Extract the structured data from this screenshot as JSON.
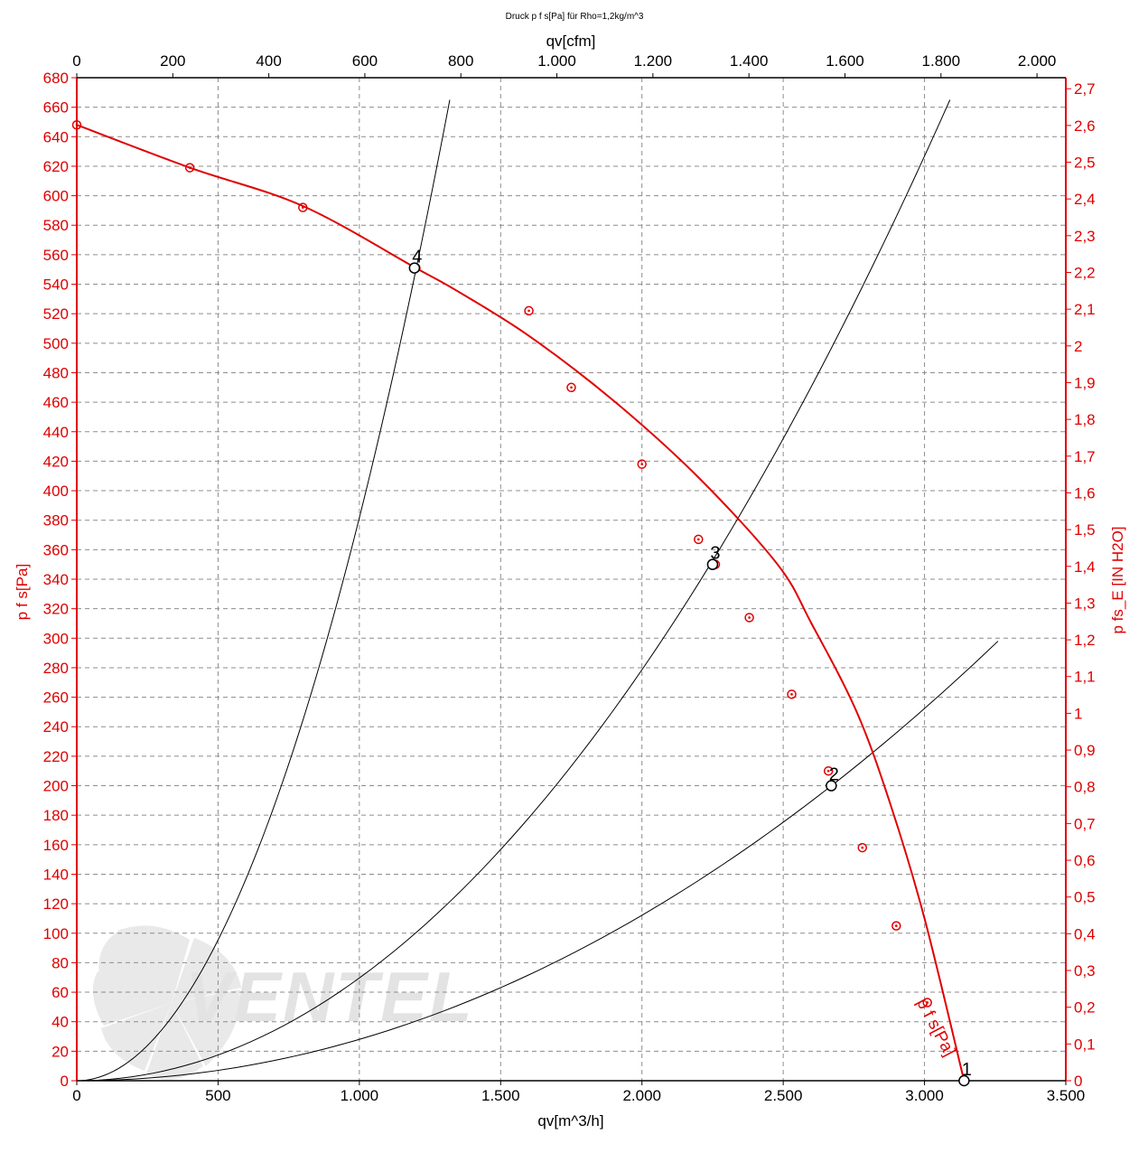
{
  "chart_data": {
    "type": "line",
    "title": "Druck p f s[Pa] für Rho=1,2kg/m^3",
    "x_bottom": {
      "label": "qv[m^3/h]",
      "range": [
        0,
        3500
      ],
      "ticks": [
        0,
        500,
        1000,
        1500,
        2000,
        2500,
        3000,
        3500
      ],
      "tick_labels": [
        "0",
        "500",
        "1.000",
        "1.500",
        "2.000",
        "2.500",
        "3.000",
        "3.500"
      ]
    },
    "x_top": {
      "label": "qv[cfm]",
      "range": [
        0,
        2060
      ],
      "ticks": [
        0,
        200,
        400,
        600,
        800,
        1000,
        1200,
        1400,
        1600,
        1800,
        2000
      ],
      "tick_labels": [
        "0",
        "200",
        "400",
        "600",
        "800",
        "1.000",
        "1.200",
        "1.400",
        "1.600",
        "1.800",
        "2.000"
      ]
    },
    "y_left": {
      "label": "p f s[Pa]",
      "range": [
        0,
        680
      ],
      "ticks": [
        0,
        20,
        40,
        60,
        80,
        100,
        120,
        140,
        160,
        180,
        200,
        220,
        240,
        260,
        280,
        300,
        320,
        340,
        360,
        380,
        400,
        420,
        440,
        460,
        480,
        500,
        520,
        540,
        560,
        580,
        600,
        620,
        640,
        660,
        680
      ],
      "tick_labels": [
        "0",
        "20",
        "40",
        "60",
        "80",
        "100",
        "120",
        "140",
        "160",
        "180",
        "200",
        "220",
        "240",
        "260",
        "280",
        "300",
        "320",
        "340",
        "360",
        "380",
        "400",
        "420",
        "440",
        "460",
        "480",
        "500",
        "520",
        "540",
        "560",
        "580",
        "600",
        "620",
        "640",
        "660",
        "680"
      ]
    },
    "y_right": {
      "label": "p fs_E [IN H2O]",
      "range": [
        0,
        2.73
      ],
      "ticks": [
        0,
        0.1,
        0.2,
        0.3,
        0.4,
        0.5,
        0.6,
        0.7,
        0.8,
        0.9,
        1.0,
        1.1,
        1.2,
        1.3,
        1.4,
        1.5,
        1.6,
        1.7,
        1.8,
        1.9,
        2.0,
        2.1,
        2.2,
        2.3,
        2.4,
        2.5,
        2.6,
        2.7
      ],
      "tick_labels": [
        "0",
        "0,1",
        "0,2",
        "0,3",
        "0,4",
        "0,5",
        "0,6",
        "0,7",
        "0,8",
        "0,9",
        "1",
        "1,1",
        "1,2",
        "1,3",
        "1,4",
        "1,5",
        "1,6",
        "1,7",
        "1,8",
        "1,9",
        "2",
        "2,1",
        "2,2",
        "2,3",
        "2,4",
        "2,5",
        "2,6",
        "2,7"
      ]
    },
    "grid": true,
    "series": [
      {
        "name": "p f s[Pa]",
        "color": "#e00000",
        "x": [
          0,
          400,
          800,
          1200,
          1350,
          1600,
          1900,
          2200,
          2480,
          2600,
          2760,
          2880,
          3000,
          3140
        ],
        "y": [
          648,
          619,
          593,
          551,
          535,
          505,
          461,
          409,
          350,
          310,
          250,
          187,
          110,
          0
        ],
        "markers_x": [
          0,
          400,
          800,
          1200,
          1600,
          1750,
          2000,
          2200,
          2260,
          2380,
          2530,
          2660,
          2780,
          2900,
          3010
        ],
        "markers_y": [
          648,
          619,
          592,
          551,
          522,
          470,
          418,
          367,
          350,
          314,
          262,
          210,
          158,
          105,
          53
        ]
      }
    ],
    "system_curves": [
      {
        "x_max": 1320,
        "y_max": 665
      },
      {
        "x_max": 3090,
        "y_max": 665
      },
      {
        "x_max": 3260,
        "y_max": 298
      }
    ],
    "operating_points": [
      {
        "label": "1",
        "x": 3140,
        "y": 0
      },
      {
        "label": "2",
        "x": 2670,
        "y": 200
      },
      {
        "label": "3",
        "x": 2250,
        "y": 350
      },
      {
        "label": "4",
        "x": 1195,
        "y": 551
      }
    ],
    "watermark_text": "VENTEL"
  }
}
